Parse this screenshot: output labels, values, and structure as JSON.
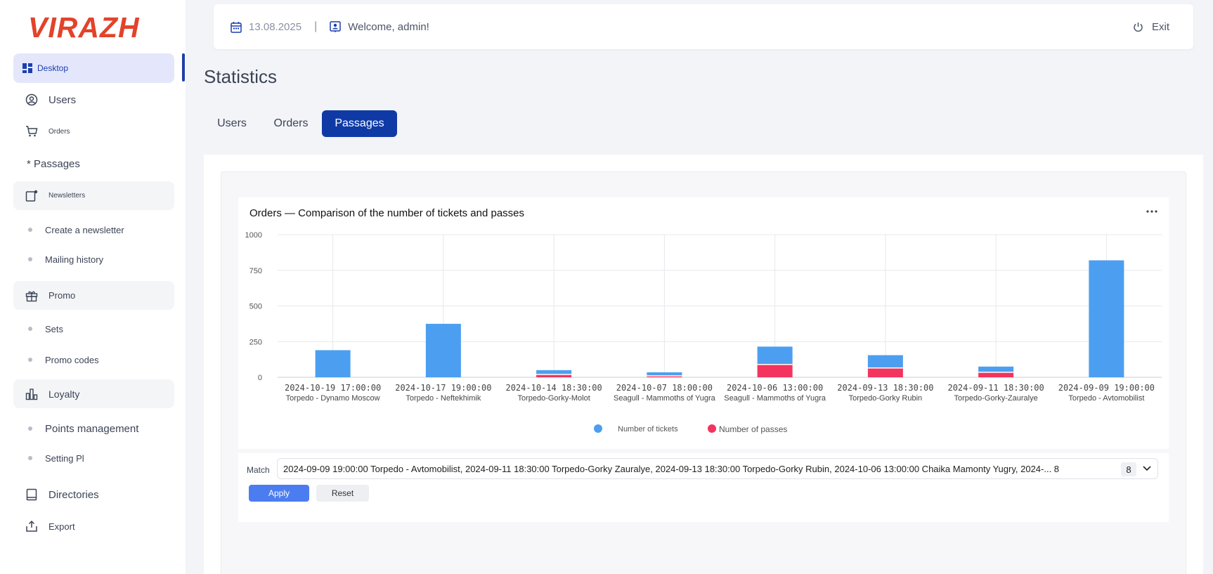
{
  "app": {
    "logo": "VIRAZH"
  },
  "sidebar": {
    "items": [
      {
        "label": "Desktop",
        "icon": "dashboard-icon"
      },
      {
        "label": "Users",
        "icon": "user-circle-icon"
      },
      {
        "label": "Orders",
        "icon": "cart-icon"
      },
      {
        "label": "* Passages"
      },
      {
        "label": "Newsletters",
        "icon": "newsletter-icon"
      },
      {
        "label": "Create a newsletter"
      },
      {
        "label": "Mailing history"
      },
      {
        "label": "Promo",
        "icon": "gift-icon"
      },
      {
        "label": "Sets"
      },
      {
        "label": "Promo codes"
      },
      {
        "label": "Loyalty",
        "icon": "bar-chart-icon"
      },
      {
        "label": "Points management"
      },
      {
        "label": "Setting Pl"
      },
      {
        "label": "Directories",
        "icon": "book-icon"
      },
      {
        "label": "Export",
        "icon": "export-icon"
      }
    ]
  },
  "topbar": {
    "date": "13.08.2025",
    "separator": "|",
    "welcome": "Welcome, admin!",
    "exit": "Exit"
  },
  "page": {
    "title": "Statistics"
  },
  "tabs": [
    {
      "label": "Users"
    },
    {
      "label": "Orders"
    },
    {
      "label": "Passages"
    }
  ],
  "chart_data": {
    "type": "bar",
    "stacked": true,
    "title": "Orders — Comparison of the number of tickets and passes",
    "categories": [
      "2024-10-19 17:00:00",
      "2024-10-17 19:00:00",
      "2024-10-14 18:30:00",
      "2024-10-07 18:00:00",
      "2024-10-06 13:00:00",
      "2024-09-13 18:30:00",
      "2024-09-11 18:30:00",
      "2024-09-09 19:00:00"
    ],
    "subcategories": [
      "Torpedo - Dynamo Moscow",
      "Torpedo - Neftekhimik",
      "Torpedo-Gorky-Molot",
      "Seagull - Mammoths of Yugra",
      "Seagull - Mammoths of Yugra",
      "Torpedo-Gorky Rubin",
      "Torpedo-Gorky-Zauralye",
      "Torpedo - Avtomobilist"
    ],
    "series": [
      {
        "name": "Number of passes",
        "color": "#f2345e",
        "values": [
          0,
          0,
          20,
          10,
          90,
          65,
          35,
          0
        ]
      },
      {
        "name": "Number of tickets",
        "color": "#4c9ff0",
        "values": [
          190,
          375,
          30,
          25,
          125,
          90,
          40,
          820
        ]
      }
    ],
    "yticks": [
      "0",
      "250",
      "500",
      "750",
      "1000"
    ],
    "ylim": [
      0,
      1000
    ],
    "grid": true,
    "legend": "bottom-center"
  },
  "filter": {
    "label": "Match",
    "value": "2024-09-09 19:00:00 Torpedo - Avtomobilist, 2024-09-11 18:30:00 Torpedo-Gorky Zauralye, 2024-09-13 18:30:00 Torpedo-Gorky Rubin, 2024-10-06 13:00:00 Chaika Mamonty Yugry, 2024-... 8",
    "count": "8",
    "apply": "Apply",
    "reset": "Reset"
  },
  "colors": {
    "primary": "#0f3aa6",
    "logo": "#e2432a",
    "tickets": "#4c9ff0",
    "passes": "#f2345e",
    "apply": "#4c7df0"
  }
}
